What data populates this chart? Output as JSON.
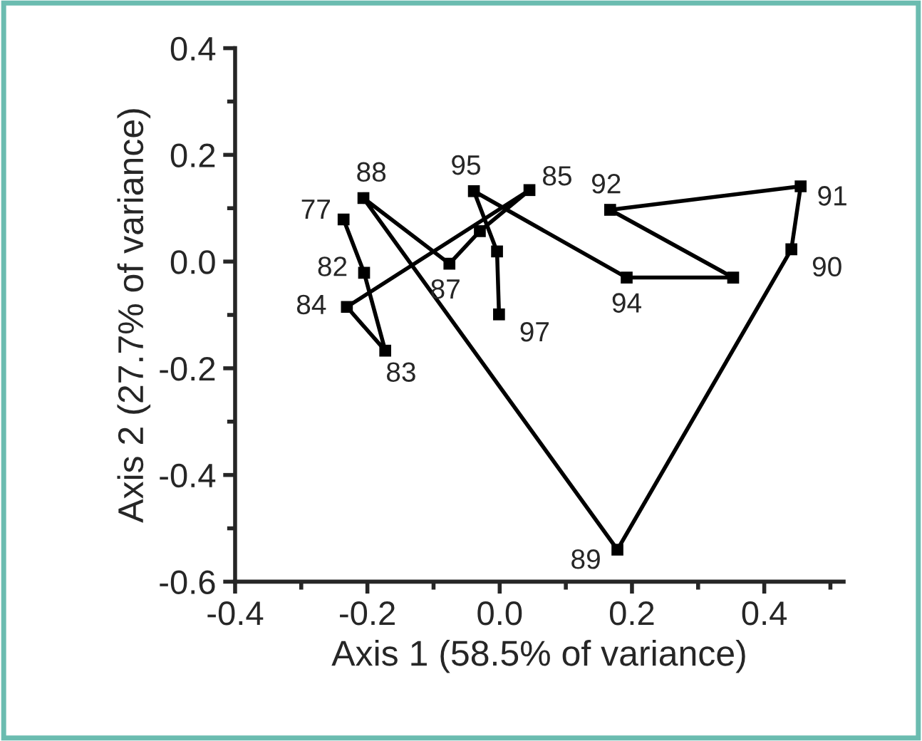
{
  "chart_data": {
    "type": "line",
    "xlabel": "Axis 1 (58.5% of variance)",
    "ylabel": "Axis 2 (27.7% of variance)",
    "x": [
      -0.236,
      -0.205,
      -0.173,
      -0.231,
      0.045,
      -0.03,
      -0.076,
      -0.206,
      0.178,
      0.441,
      0.455,
      0.167,
      0.353,
      0.192,
      -0.039,
      -0.004,
      -0.001
    ],
    "series": [
      {
        "color": "#000000",
        "values": [
          0.079,
          -0.021,
          -0.167,
          -0.085,
          0.134,
          0.057,
          -0.004,
          0.119,
          -0.54,
          0.023,
          0.141,
          0.097,
          -0.03,
          -0.03,
          0.132,
          0.019,
          -0.099
        ]
      }
    ],
    "marker": "square",
    "line_style": "solid",
    "grid": false,
    "legend": false,
    "xlim": [
      -0.4,
      0.52
    ],
    "ylim": [
      -0.6,
      0.4
    ],
    "xticks": [
      -0.4,
      {
        "value": -0.3,
        "label": null
      },
      -0.2,
      {
        "value": -0.1,
        "label": null
      },
      {
        "value": 0.0,
        "label": "0.0"
      },
      {
        "value": 0.1,
        "label": null
      },
      0.2,
      {
        "value": 0.3,
        "label": null
      },
      0.4,
      {
        "value": 0.5,
        "label": null
      }
    ],
    "yticks": [
      -0.6,
      {
        "value": -0.5,
        "label": null
      },
      -0.4,
      {
        "value": -0.3,
        "label": null
      },
      -0.2,
      {
        "value": -0.1,
        "label": null
      },
      {
        "value": 0.0,
        "label": "0.0"
      },
      {
        "value": 0.1,
        "label": null
      },
      0.2,
      {
        "value": 0.3,
        "label": null
      },
      0.4
    ],
    "annotations": [
      {
        "text": "77",
        "x": -0.236,
        "y": 0.079
      },
      {
        "text": "82",
        "x": -0.205,
        "y": -0.021
      },
      {
        "text": "83",
        "x": -0.173,
        "y": -0.167
      },
      {
        "text": "84",
        "x": -0.231,
        "y": -0.085
      },
      {
        "text": "85",
        "x": 0.045,
        "y": 0.134
      },
      {
        "text": "87",
        "x": -0.076,
        "y": -0.004
      },
      {
        "text": "88",
        "x": -0.206,
        "y": 0.119
      },
      {
        "text": "89",
        "x": 0.178,
        "y": -0.54
      },
      {
        "text": "90",
        "x": 0.441,
        "y": 0.023
      },
      {
        "text": "91",
        "x": 0.455,
        "y": 0.141
      },
      {
        "text": "92",
        "x": 0.167,
        "y": 0.097
      },
      {
        "text": "94",
        "x": 0.192,
        "y": -0.03
      },
      {
        "text": "95",
        "x": -0.039,
        "y": 0.132
      },
      {
        "text": "97",
        "x": -0.001,
        "y": -0.099
      }
    ]
  }
}
